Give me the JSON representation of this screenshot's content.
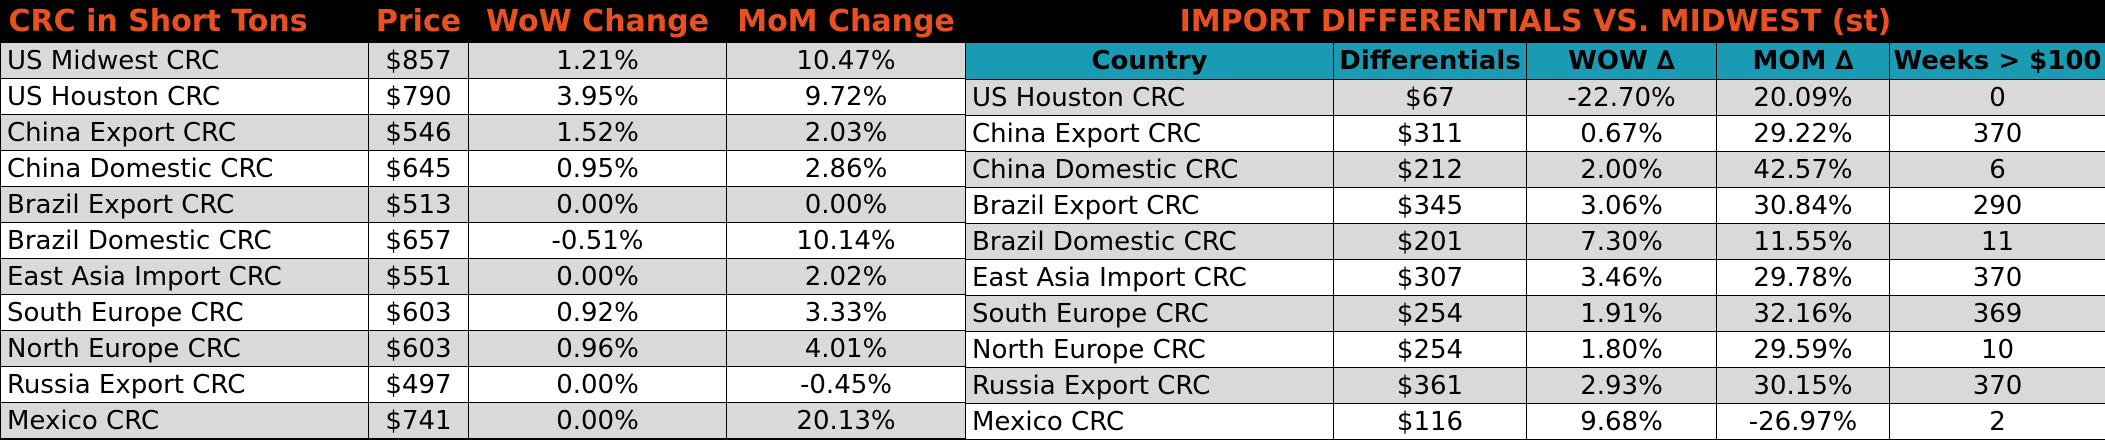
{
  "chart_data": [
    {
      "type": "table",
      "headers": [
        "CRC in Short Tons",
        "Price",
        "WoW Change",
        "MoM Change"
      ],
      "rows": [
        [
          "US Midwest CRC",
          "$857",
          "1.21%",
          "10.47%"
        ],
        [
          "US Houston CRC",
          "$790",
          "3.95%",
          "9.72%"
        ],
        [
          "China Export CRC",
          "$546",
          "1.52%",
          "2.03%"
        ],
        [
          "China Domestic CRC",
          "$645",
          "0.95%",
          "2.86%"
        ],
        [
          "Brazil Export CRC",
          "$513",
          "0.00%",
          "0.00%"
        ],
        [
          "Brazil Domestic CRC",
          "$657",
          "-0.51%",
          "10.14%"
        ],
        [
          "East Asia Import CRC",
          "$551",
          "0.00%",
          "2.02%"
        ],
        [
          "South Europe CRC",
          "$603",
          "0.92%",
          "3.33%"
        ],
        [
          "North Europe CRC",
          "$603",
          "0.96%",
          "4.01%"
        ],
        [
          "Russia Export CRC",
          "$497",
          "0.00%",
          "-0.45%"
        ],
        [
          "Mexico CRC",
          "$741",
          "0.00%",
          "20.13%"
        ]
      ]
    },
    {
      "type": "table",
      "title": "IMPORT DIFFERENTIALS VS. MIDWEST (st)",
      "headers": [
        "Country",
        "Differentials",
        "WOW ∆",
        "MOM ∆",
        "Weeks > $100"
      ],
      "rows": [
        [
          "US Houston CRC",
          "$67",
          "-22.70%",
          "20.09%",
          "0"
        ],
        [
          "China Export CRC",
          "$311",
          "0.67%",
          "29.22%",
          "370"
        ],
        [
          "China Domestic CRC",
          "$212",
          "2.00%",
          "42.57%",
          "6"
        ],
        [
          "Brazil Export CRC",
          "$345",
          "3.06%",
          "30.84%",
          "290"
        ],
        [
          "Brazil Domestic CRC",
          "$201",
          "7.30%",
          "11.55%",
          "11"
        ],
        [
          "East Asia Import CRC",
          "$307",
          "3.46%",
          "29.78%",
          "370"
        ],
        [
          "South Europe CRC",
          "$254",
          "1.91%",
          "32.16%",
          "369"
        ],
        [
          "North Europe CRC",
          "$254",
          "1.80%",
          "29.59%",
          "10"
        ],
        [
          "Russia Export CRC",
          "$361",
          "2.93%",
          "30.15%",
          "370"
        ],
        [
          "Mexico CRC",
          "$116",
          "9.68%",
          "-26.97%",
          "2"
        ]
      ]
    }
  ],
  "colors": {
    "title_text": "#e8501f",
    "header_fill": "#1b9bb3",
    "row_gray": "#d9d9d9",
    "row_white": "#ffffff",
    "background": "#000000"
  }
}
